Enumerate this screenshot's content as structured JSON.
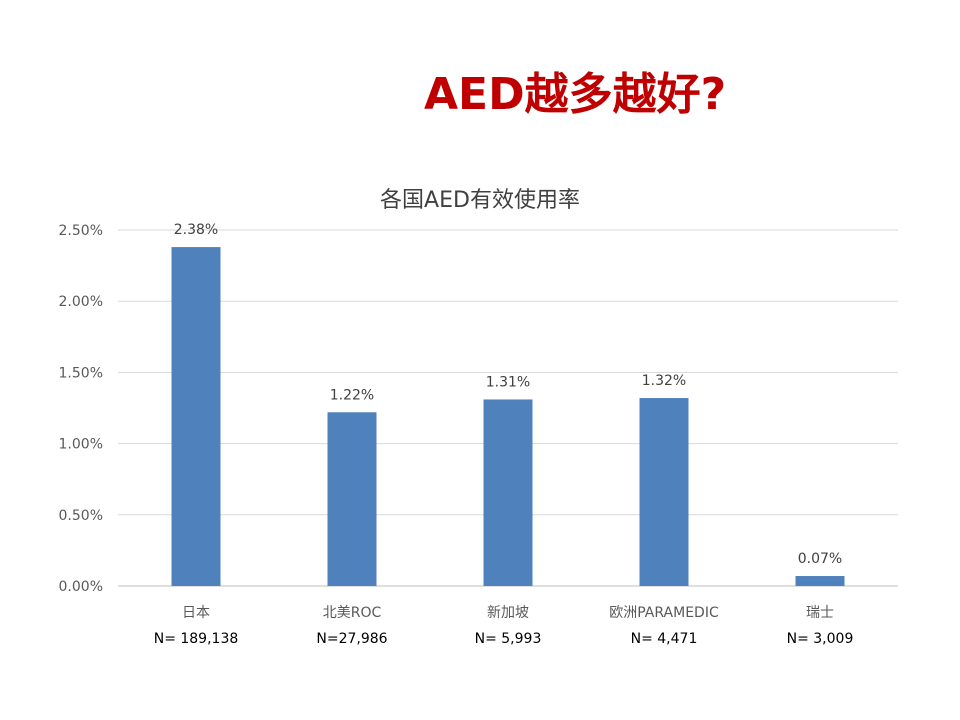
{
  "slide_title": "AED越多越好?",
  "colors": {
    "title": "#c00000",
    "bar": "#4f81bd",
    "grid": "#d9d9d9"
  },
  "chart_data": {
    "type": "bar",
    "title": "各国AED有效使用率",
    "categories": [
      "日本",
      "北美ROC",
      "新加坡",
      "欧洲PARAMEDIC",
      "瑞士"
    ],
    "sample_sizes": [
      "N= 189,138",
      "N=27,986",
      "N= 5,993",
      "N= 4,471",
      "N= 3,009"
    ],
    "values": [
      2.38,
      1.22,
      1.31,
      1.32,
      0.07
    ],
    "data_labels": [
      "2.38%",
      "1.22%",
      "1.31%",
      "1.32%",
      "0.07%"
    ],
    "y_ticks": [
      "0.00%",
      "0.50%",
      "1.00%",
      "1.50%",
      "2.00%",
      "2.50%"
    ],
    "ylim": [
      0,
      2.5
    ],
    "grid": true,
    "legend": "none"
  }
}
